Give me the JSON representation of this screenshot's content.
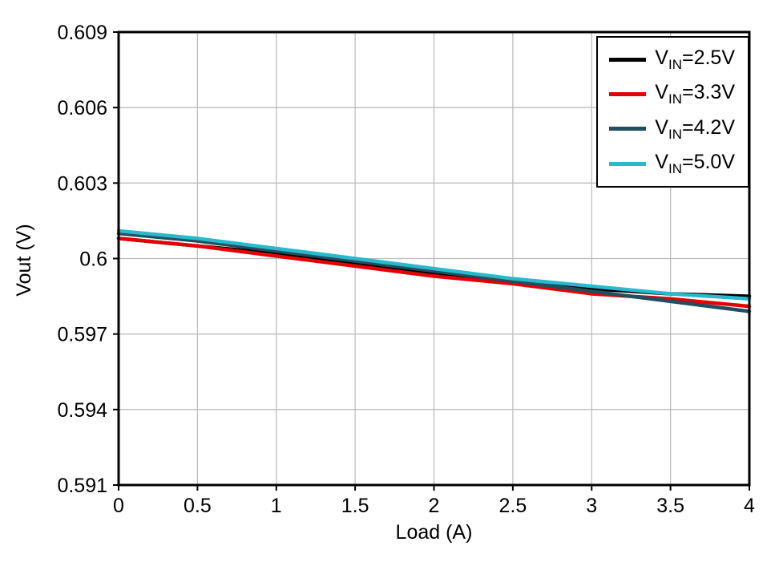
{
  "chart_data": {
    "type": "line",
    "title": "",
    "xlabel": "Load (A)",
    "ylabel": "Vout (V)",
    "xlim": [
      0,
      4
    ],
    "ylim": [
      0.591,
      0.609
    ],
    "xticks": [
      0,
      0.5,
      1,
      1.5,
      2,
      2.5,
      3,
      3.5,
      4
    ],
    "xtick_labels": [
      "0",
      "0.5",
      "1",
      "1.5",
      "2",
      "2.5",
      "3",
      "3.5",
      "4"
    ],
    "yticks": [
      0.591,
      0.594,
      0.597,
      0.6,
      0.603,
      0.606,
      0.609
    ],
    "ytick_labels": [
      "0.591",
      "0.594",
      "0.597",
      "0.6",
      "0.603",
      "0.606",
      "0.609"
    ],
    "grid": true,
    "legend_position": "top-right",
    "x": [
      0,
      0.5,
      1,
      1.5,
      2,
      2.5,
      3,
      3.5,
      4
    ],
    "series": [
      {
        "name": "VIN=2.5V",
        "label_pre": "V",
        "label_sub": "IN",
        "label_post": "=2.5V",
        "color": "#000000",
        "values": [
          0.6008,
          0.6005,
          0.6002,
          0.5998,
          0.5994,
          0.5991,
          0.5988,
          0.5986,
          0.5985
        ]
      },
      {
        "name": "VIN=3.3V",
        "label_pre": "V",
        "label_sub": "IN",
        "label_post": "=3.3V",
        "color": "#e60000",
        "values": [
          0.6008,
          0.6005,
          0.6001,
          0.5997,
          0.5993,
          0.599,
          0.5986,
          0.5984,
          0.5981
        ]
      },
      {
        "name": "VIN=4.2V",
        "label_pre": "V",
        "label_sub": "IN",
        "label_post": "=4.2V",
        "color": "#204f5f",
        "values": [
          0.601,
          0.6007,
          0.6003,
          0.5999,
          0.5995,
          0.5991,
          0.5987,
          0.5983,
          0.5979
        ]
      },
      {
        "name": "VIN=5.0V",
        "label_pre": "V",
        "label_sub": "IN",
        "label_post": "=5.0V",
        "color": "#29b8cc",
        "values": [
          0.6011,
          0.6008,
          0.6004,
          0.6,
          0.5996,
          0.5992,
          0.5989,
          0.5986,
          0.5984
        ]
      }
    ],
    "colors": {
      "grid": "#bdbdbd",
      "frame": "#000000",
      "text": "#000000",
      "background": "#ffffff"
    }
  }
}
